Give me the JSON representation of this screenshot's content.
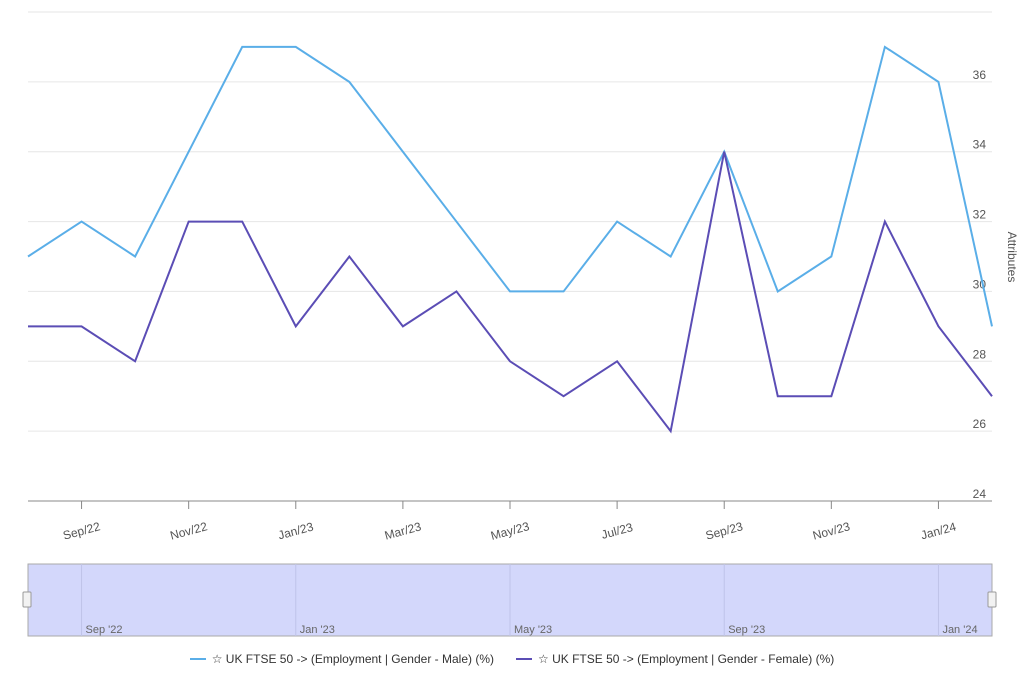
{
  "chart_data": {
    "type": "line",
    "categories": [
      null,
      "Sep/22",
      null,
      "Nov/22",
      null,
      "Jan/23",
      null,
      "Mar/23",
      null,
      "May/23",
      null,
      "Jul/23",
      null,
      "Sep/23",
      null,
      "Nov/23",
      null,
      "Jan/24",
      null
    ],
    "series": [
      {
        "name": "☆ UK FTSE 50 -> (Employment | Gender - Male) (%)",
        "color": "#5aaee8",
        "values": [
          31,
          32,
          31,
          34,
          37,
          37,
          36,
          34,
          32,
          30,
          30,
          32,
          31,
          34,
          30,
          31,
          37,
          36,
          29
        ]
      },
      {
        "name": "☆ UK FTSE 50 -> (Employment | Gender - Female) (%)",
        "color": "#5b4db5",
        "values": [
          29,
          29,
          28,
          32,
          32,
          29,
          31,
          29,
          30,
          28,
          27,
          28,
          26,
          34,
          27,
          27,
          32,
          29,
          27
        ]
      }
    ],
    "y_axis_label": "Attributes",
    "ylim": [
      24,
      38
    ],
    "yticks": [
      24,
      26,
      28,
      30,
      32,
      34,
      36
    ],
    "grid": true,
    "navigator": {
      "labels": [
        "Sep '22",
        "Jan '23",
        "May '23",
        "Sep '23",
        "Jan '24"
      ]
    }
  }
}
